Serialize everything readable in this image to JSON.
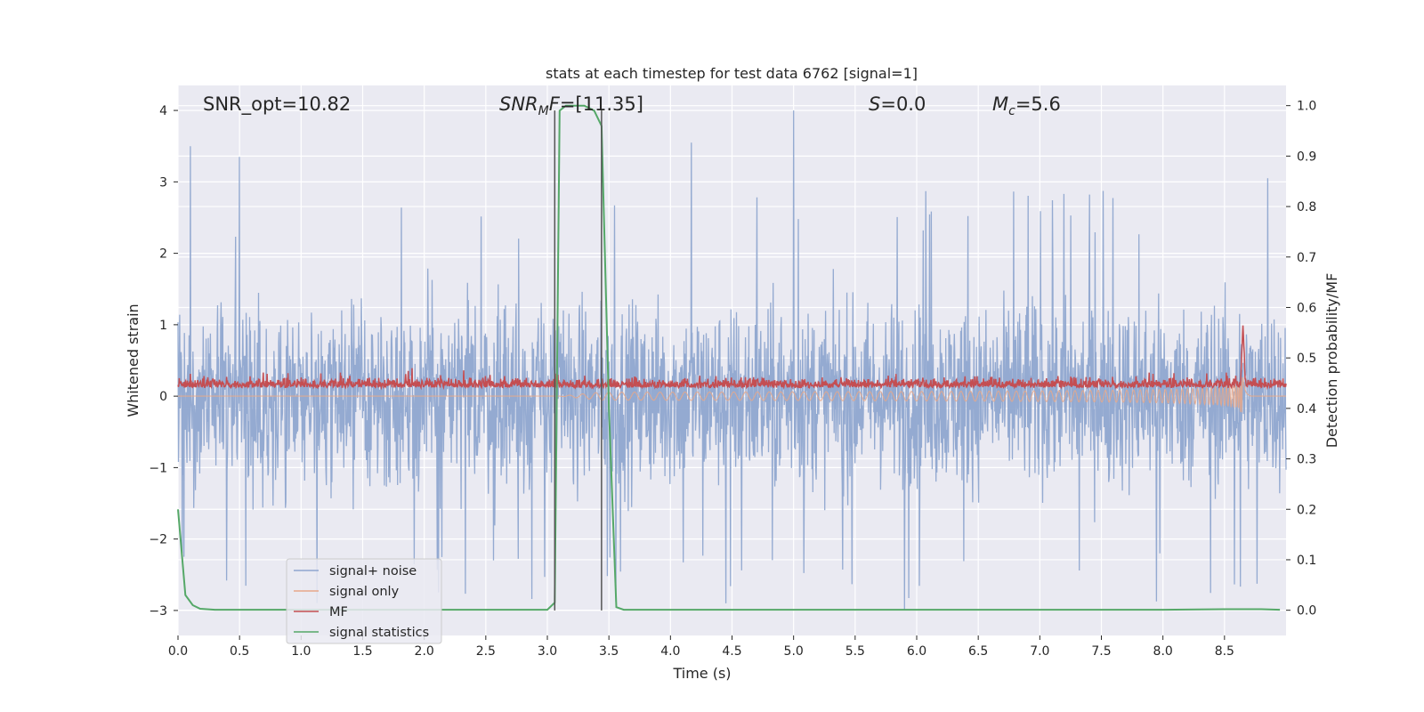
{
  "chart_data": {
    "type": "line",
    "title": "stats at each timestep for test data 6762 [signal=1]",
    "xlabel": "Time (s)",
    "ylabel_left": "Whitened strain",
    "ylabel_right": "Detection probability/MF",
    "xlim": [
      0.0,
      9.0
    ],
    "ylim_left": [
      -3.35,
      4.35
    ],
    "ylim_right": [
      -0.05,
      1.04
    ],
    "xticks": [
      0.0,
      0.5,
      1.0,
      1.5,
      2.0,
      2.5,
      3.0,
      3.5,
      4.0,
      4.5,
      5.0,
      5.5,
      6.0,
      6.5,
      7.0,
      7.5,
      8.0,
      8.5
    ],
    "xtick_labels": [
      "0.0",
      "0.5",
      "1.0",
      "1.5",
      "2.0",
      "2.5",
      "3.0",
      "3.5",
      "4.0",
      "4.5",
      "5.0",
      "5.5",
      "6.0",
      "6.5",
      "7.0",
      "7.5",
      "8.0",
      "8.5"
    ],
    "yticks_left": [
      -3,
      -2,
      -1,
      0,
      1,
      2,
      3,
      4
    ],
    "ytick_labels_left": [
      "−3",
      "−2",
      "−1",
      "0",
      "1",
      "2",
      "3",
      "4"
    ],
    "yticks_right": [
      0.0,
      0.1,
      0.2,
      0.3,
      0.4,
      0.5,
      0.6,
      0.7,
      0.8,
      0.9,
      1.0
    ],
    "ytick_labels_right": [
      "0.0",
      "0.1",
      "0.2",
      "0.3",
      "0.4",
      "0.5",
      "0.6",
      "0.7",
      "0.8",
      "0.9",
      "1.0"
    ],
    "annotations": {
      "snr_opt": "SNR_opt=10.82",
      "snr_mf_base": "SNR",
      "snr_mf_sub": "M",
      "snr_mf_italic2": "F",
      "snr_mf_value": "=[11.35]",
      "s_italic": "S",
      "s_value": "=0.0",
      "mc_base": "M",
      "mc_sub": "c",
      "mc_value": "=5.6"
    },
    "vertical_markers": [
      3.06,
      3.44
    ],
    "series": [
      {
        "name": "signal+ noise",
        "color": "#8fa6cf",
        "axis": "left",
        "kind": "noise",
        "envelope": 1.9,
        "peaks": [
          [
            0.1,
            3.5
          ],
          [
            0.5,
            3.35
          ],
          [
            4.17,
            3.55
          ],
          [
            5.0,
            4.0
          ],
          [
            8.85,
            3.05
          ],
          [
            5.9,
            -3.0
          ],
          [
            4.45,
            -2.9
          ]
        ]
      },
      {
        "name": "signal only",
        "color": "#e8a88a",
        "axis": "left",
        "kind": "chirp",
        "start_time": 3.1,
        "merger_time": 8.65,
        "peak_amplitude": 1.0
      },
      {
        "name": "MF",
        "color": "#c44e52",
        "axis": "left",
        "kind": "mf",
        "baseline": 0.12,
        "peak_time": 8.65,
        "peak_value": 1.0
      },
      {
        "name": "signal statistics",
        "color": "#55a868",
        "axis": "right",
        "x": [
          0.0,
          0.06,
          0.12,
          0.18,
          0.3,
          0.6,
          1.0,
          2.0,
          2.9,
          3.0,
          3.06,
          3.1,
          3.15,
          3.2,
          3.3,
          3.38,
          3.44,
          3.5,
          3.56,
          3.62,
          3.7,
          4.0,
          5.0,
          6.0,
          7.0,
          8.0,
          8.5,
          8.8,
          8.95
        ],
        "y": [
          0.2,
          0.03,
          0.01,
          0.003,
          0.001,
          0.001,
          0.001,
          0.001,
          0.001,
          0.001,
          0.015,
          0.99,
          1.0,
          1.0,
          1.0,
          0.99,
          0.96,
          0.4,
          0.006,
          0.001,
          0.001,
          0.001,
          0.001,
          0.001,
          0.001,
          0.001,
          0.002,
          0.002,
          0.001
        ]
      }
    ],
    "legend": {
      "location": "lower-left",
      "entries": [
        "signal+ noise",
        "signal only",
        "MF",
        "signal statistics"
      ]
    },
    "grid": true
  }
}
